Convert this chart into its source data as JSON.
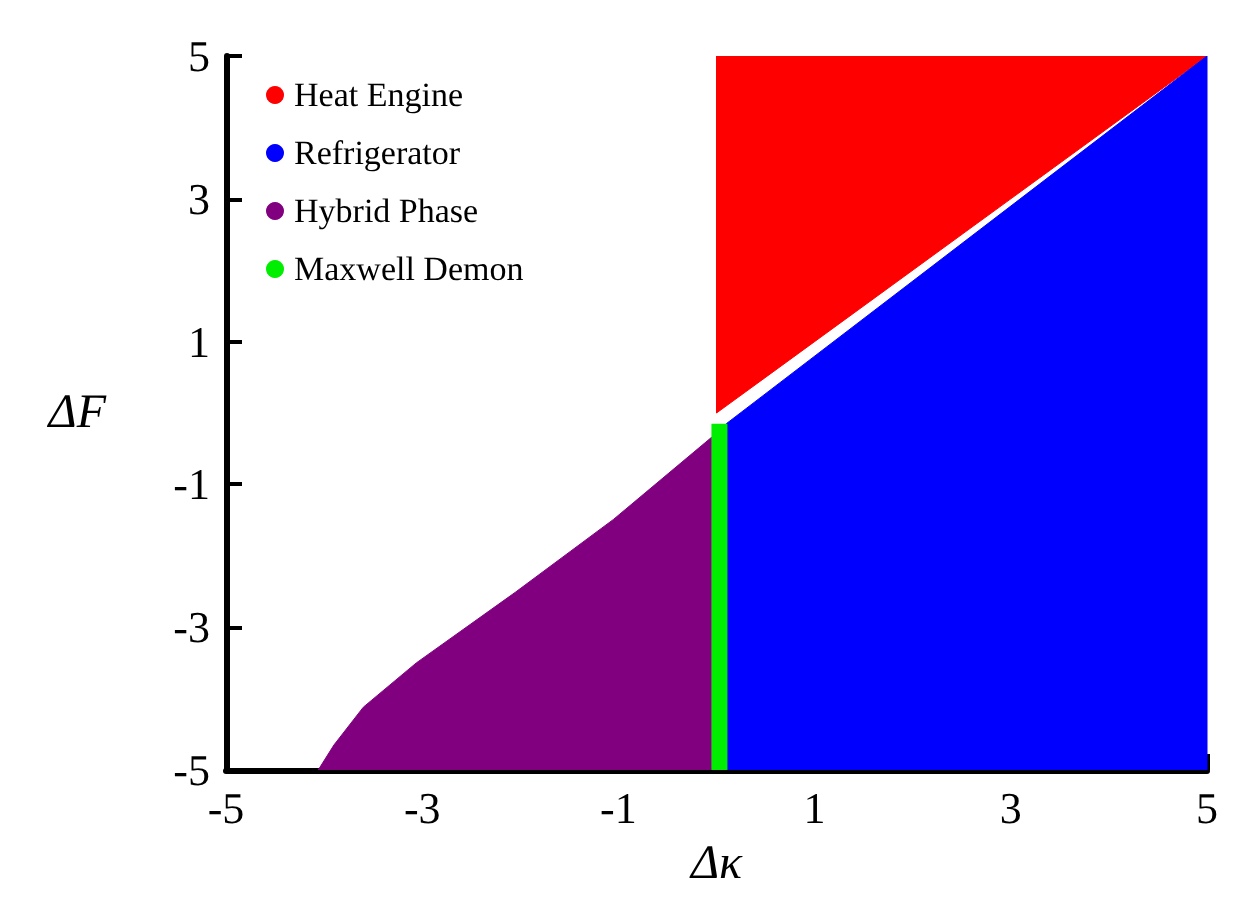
{
  "chart_data": {
    "type": "area",
    "xlabel": "Δκ",
    "ylabel": "ΔF",
    "xlim": [
      -5,
      5
    ],
    "ylim": [
      -5,
      5
    ],
    "xticks": [
      -5,
      -3,
      -1,
      1,
      3,
      5
    ],
    "yticks": [
      -5,
      -3,
      -1,
      1,
      3,
      5
    ],
    "grid": false,
    "legend": "top left",
    "marker": "none",
    "series": [
      {
        "name": "Heat Engine",
        "color": "#ff0000",
        "x": [
          0,
          0,
          5
        ],
        "values": [
          0,
          5,
          5
        ]
      },
      {
        "name": "Refrigerator",
        "color": "#0000ff",
        "x": [
          0.1,
          0.1,
          5,
          5
        ],
        "values": [
          -5,
          -0.15,
          5,
          -5
        ]
      },
      {
        "name": "Hybrid Phase",
        "color": "#800080",
        "x": [
          -4.06,
          -3.9,
          -3.6,
          -3.06,
          -2.05,
          -1.05,
          -0.05,
          -0.05
        ],
        "values": [
          -5,
          -4.65,
          -4.12,
          -3.5,
          -2.51,
          -1.49,
          -0.34,
          -5
        ]
      },
      {
        "name": "Maxwell Demon",
        "type": "line",
        "color": "#00ee00",
        "x": [
          0.03,
          0.03
        ],
        "values": [
          -5,
          -0.15
        ]
      }
    ]
  }
}
